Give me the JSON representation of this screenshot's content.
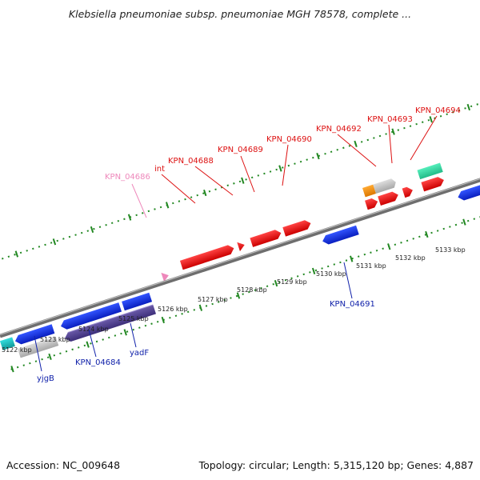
{
  "title": "Klebsiella pneumoniae subsp. pneumoniae MGH 78578, complete ...",
  "footer": {
    "accession": "Accession: NC_009648",
    "info": "Topology: circular; Length: 5,315,120 bp; Genes: 4,887"
  },
  "colors": {
    "forward_highlight": "#ee1111",
    "reverse_gene": "#1133dd",
    "hypothetical": "#bbbbbb",
    "pseudo_label": "#ee88bb",
    "tick": "#228822",
    "backbone": "#888888"
  },
  "scale_labels": [
    "5122 kbp",
    "5123 kbp",
    "5124 kbp",
    "5125 kbp",
    "5126 kbp",
    "5127 kbp",
    "5128 kbp",
    "5129 kbp",
    "5130 kbp",
    "5131 kbp",
    "5132 kbp",
    "5133 kbp"
  ],
  "gene_labels_top": [
    {
      "text": "KPN_04686",
      "color": "#ee88bb"
    },
    {
      "text": "int",
      "color": "#dd1111"
    },
    {
      "text": "KPN_04688",
      "color": "#dd1111"
    },
    {
      "text": "KPN_04689",
      "color": "#dd1111"
    },
    {
      "text": "KPN_04690",
      "color": "#dd1111"
    },
    {
      "text": "KPN_04692",
      "color": "#dd1111"
    },
    {
      "text": "KPN_04693",
      "color": "#dd1111"
    },
    {
      "text": "KPN_04694",
      "color": "#dd1111"
    }
  ],
  "gene_labels_bottom": [
    {
      "text": "yjgB",
      "color": "#1122aa"
    },
    {
      "text": "KPN_04684",
      "color": "#1122aa"
    },
    {
      "text": "yadF",
      "color": "#1122aa"
    },
    {
      "text": "KPN_04691",
      "color": "#1122aa"
    }
  ]
}
